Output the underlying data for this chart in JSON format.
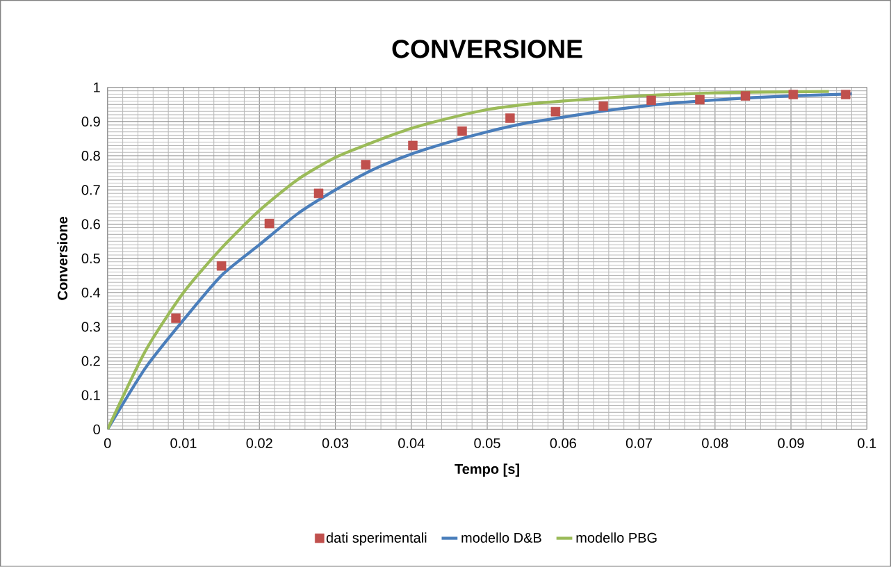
{
  "chart_data": {
    "type": "line",
    "title": "CONVERSIONE",
    "xlabel": "Tempo [s]",
    "ylabel": "Conversione",
    "xlim": [
      0,
      0.1
    ],
    "ylim": [
      0,
      1
    ],
    "xticks": [
      0,
      0.01,
      0.02,
      0.03,
      0.04,
      0.05,
      0.06,
      0.07,
      0.08,
      0.09,
      0.1
    ],
    "yticks": [
      0,
      0.1,
      0.2,
      0.3,
      0.4,
      0.5,
      0.6,
      0.7,
      0.8,
      0.9,
      1
    ],
    "grid": true,
    "legend": "bottom",
    "series": [
      {
        "name": "dati sperimentali",
        "type": "scatter",
        "marker": "square",
        "color": "#c0504d",
        "x": [
          0.009,
          0.015,
          0.0213,
          0.0278,
          0.034,
          0.0402,
          0.0467,
          0.053,
          0.059,
          0.0653,
          0.0716,
          0.078,
          0.084,
          0.0903,
          0.0972
        ],
        "values": [
          0.325,
          0.478,
          0.602,
          0.69,
          0.774,
          0.83,
          0.872,
          0.91,
          0.929,
          0.945,
          0.962,
          0.964,
          0.975,
          0.979,
          0.979
        ]
      },
      {
        "name": "modello D&B",
        "marker": "none",
        "color": "#4a7ebb",
        "x": [
          0,
          0.005,
          0.01,
          0.015,
          0.02,
          0.025,
          0.03,
          0.035,
          0.04,
          0.045,
          0.05,
          0.055,
          0.06,
          0.065,
          0.07,
          0.075,
          0.08,
          0.085,
          0.09,
          0.098
        ],
        "values": [
          0,
          0.18,
          0.32,
          0.45,
          0.54,
          0.63,
          0.7,
          0.76,
          0.805,
          0.84,
          0.87,
          0.895,
          0.913,
          0.93,
          0.944,
          0.955,
          0.963,
          0.97,
          0.975,
          0.981
        ]
      },
      {
        "name": "modello PBG",
        "marker": "none",
        "color": "#9bbb59",
        "x": [
          0,
          0.005,
          0.01,
          0.015,
          0.02,
          0.025,
          0.03,
          0.035,
          0.04,
          0.045,
          0.05,
          0.055,
          0.06,
          0.065,
          0.07,
          0.075,
          0.08,
          0.085,
          0.09,
          0.095
        ],
        "values": [
          0,
          0.23,
          0.4,
          0.53,
          0.64,
          0.73,
          0.795,
          0.84,
          0.88,
          0.91,
          0.935,
          0.95,
          0.96,
          0.968,
          0.975,
          0.98,
          0.984,
          0.986,
          0.987,
          0.988
        ]
      }
    ]
  }
}
